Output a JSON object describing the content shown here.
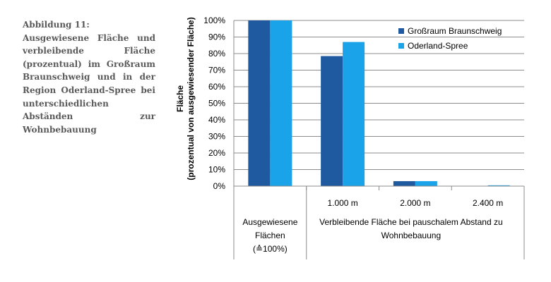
{
  "caption": {
    "title": "Abbildung 11:",
    "text": "Ausgewiesene Fläche und verbleibende Fläche (prozentual) im Großraum Braunschweig und in der Region Oderland-Spree bei unterschiedlichen Abständen zur Wohnbebauung"
  },
  "chart_data": {
    "type": "bar",
    "categories": [
      "",
      "1.000 m",
      "2.000 m",
      "2.400 m"
    ],
    "group_labels": [
      [
        "Ausgewiesene",
        "Flächen",
        "(≙100%)"
      ],
      [
        "Verbleibende Fläche bei pauschalem Abstand zu",
        "Wohnbebauung"
      ]
    ],
    "series": [
      {
        "name": "Großraum Braunschweig",
        "color": "#1f5aa0",
        "values": [
          100,
          78.5,
          3,
          0
        ]
      },
      {
        "name": "Oderland-Spree",
        "color": "#1aa3e8",
        "values": [
          100,
          87,
          3,
          0.5
        ]
      }
    ],
    "ylabel_line1": "Fläche",
    "ylabel_line2": "(prozentual von ausgewiesender Fläche)",
    "ylim": [
      0,
      100
    ],
    "yticks": [
      "0%",
      "10%",
      "20%",
      "30%",
      "40%",
      "50%",
      "60%",
      "70%",
      "80%",
      "90%",
      "100%"
    ],
    "grid": true,
    "legend_position": "top-right"
  }
}
